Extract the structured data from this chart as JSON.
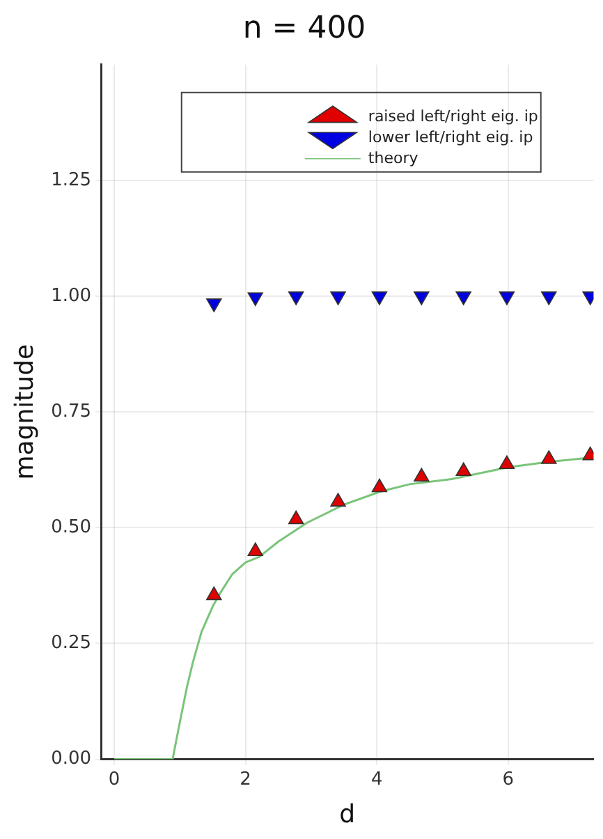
{
  "chart_data": {
    "type": "scatter",
    "title": "n = 400",
    "xlabel": "d",
    "ylabel": "magnitude",
    "xlim": [
      -0.2,
      7.3
    ],
    "xticks": [
      0,
      2,
      4,
      6
    ],
    "ylim": [
      0,
      1.5
    ],
    "yticks": [
      {
        "value": 0,
        "label": "0.00"
      },
      {
        "value": 0.25,
        "label": "0.25"
      },
      {
        "value": 0.5,
        "label": "0.50"
      },
      {
        "value": 0.75,
        "label": "0.75"
      },
      {
        "value": 1,
        "label": "1.00"
      },
      {
        "value": 1.25,
        "label": "1.25"
      }
    ],
    "grid": true,
    "legend": "top",
    "series": [
      {
        "name": "raised left/right eig. ip",
        "color": "#e00000",
        "marker": "triangle",
        "x": [
          1.52,
          2.15,
          2.77,
          3.41,
          4.04,
          4.68,
          5.32,
          5.98,
          6.62,
          7.25
        ],
        "values": [
          0.354,
          0.449,
          0.518,
          0.556,
          0.587,
          0.61,
          0.622,
          0.637,
          0.648,
          0.656
        ]
      },
      {
        "name": "lower left/right eig. ip",
        "color": "#0000e0",
        "marker": "triangle-down",
        "x": [
          1.52,
          2.15,
          2.77,
          3.41,
          4.04,
          4.68,
          5.32,
          5.98,
          6.62,
          7.25
        ],
        "values": [
          0.985,
          0.998,
          1.0,
          1.0,
          1.0,
          1.0,
          1.0,
          1.0,
          1.0,
          1.0
        ]
      },
      {
        "name": "theory",
        "type": "line",
        "color": "#7ac47a",
        "marker": "none",
        "x": [
          0,
          0.89,
          1.0,
          1.11,
          1.2,
          1.33,
          1.5,
          1.62,
          1.8,
          2.0,
          2.21,
          2.5,
          2.94,
          3.5,
          4.05,
          4.5,
          5.14,
          6.02,
          6.6,
          7.3
        ],
        "values": [
          0,
          0,
          0.08,
          0.157,
          0.21,
          0.275,
          0.33,
          0.36,
          0.4,
          0.425,
          0.437,
          0.47,
          0.511,
          0.55,
          0.578,
          0.594,
          0.605,
          0.631,
          0.642,
          0.652
        ]
      }
    ]
  }
}
